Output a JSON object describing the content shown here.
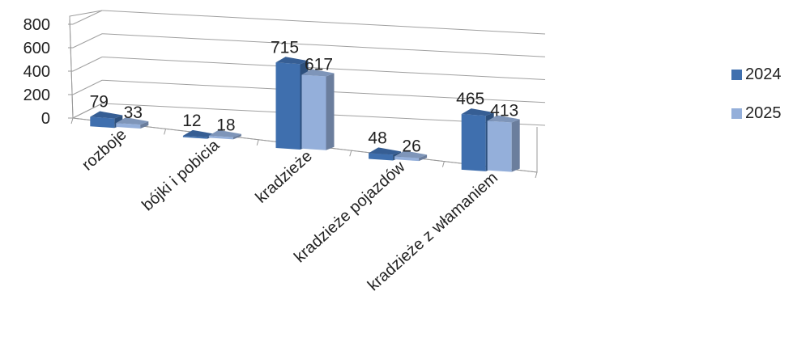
{
  "chart_data": {
    "type": "bar",
    "style": "3d-clustered-column",
    "categories": [
      "rozboje",
      "bójki i pobicia",
      "kradzieże",
      "kradzieże pojazdów",
      "kradzieże z włamaniem"
    ],
    "series": [
      {
        "name": "2024",
        "values": [
          79,
          12,
          715,
          48,
          465
        ],
        "color": "#3F6FAE"
      },
      {
        "name": "2025",
        "values": [
          33,
          18,
          617,
          26,
          413
        ],
        "color": "#94AFDA"
      }
    ],
    "y_ticks": [
      "0",
      "200",
      "400",
      "600",
      "800"
    ],
    "ylim": [
      0,
      800
    ],
    "grid": true,
    "legend_position": "right",
    "title": "",
    "xlabel": "",
    "ylabel": ""
  }
}
